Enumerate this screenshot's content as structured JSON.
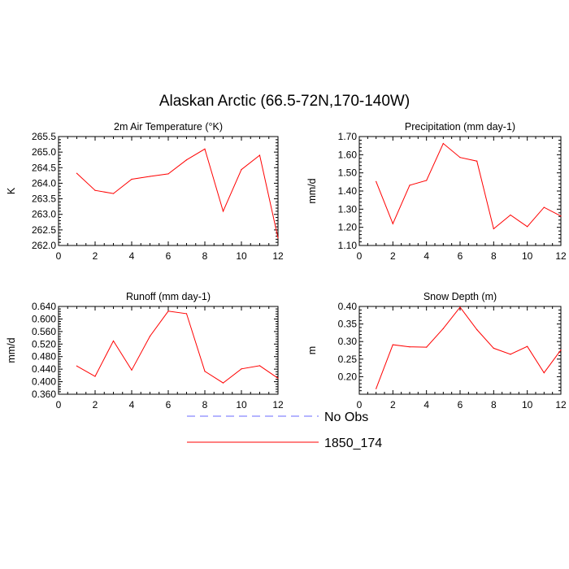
{
  "figure": {
    "title": "Alaskan Arctic (66.5-72N,170-140W)"
  },
  "chart_data": [
    {
      "type": "line",
      "title": "2m Air Temperature (°K)",
      "xlabel": "",
      "ylabel": "K",
      "xlim": [
        0,
        12
      ],
      "ylim": [
        262.0,
        265.5
      ],
      "xticks": [
        "0",
        "2",
        "4",
        "6",
        "8",
        "10",
        "12"
      ],
      "yticks": [
        "262.0",
        "262.5",
        "263.0",
        "263.5",
        "264.0",
        "264.5",
        "265.0",
        "265.5"
      ],
      "x": [
        1,
        2,
        3,
        4,
        5,
        6,
        7,
        8,
        9,
        10,
        11,
        12
      ],
      "series": [
        {
          "name": "1850_174",
          "color": "#ff0000",
          "values": [
            264.32,
            263.77,
            263.67,
            264.13,
            264.22,
            264.3,
            264.75,
            265.1,
            263.1,
            264.44,
            264.9,
            262.24
          ]
        }
      ]
    },
    {
      "type": "line",
      "title": "Precipitation (mm day-1)",
      "xlabel": "",
      "ylabel": "mm/d",
      "xlim": [
        0,
        12
      ],
      "ylim": [
        1.1,
        1.7
      ],
      "xticks": [
        "0",
        "2",
        "4",
        "6",
        "8",
        "10",
        "12"
      ],
      "yticks": [
        "1.10",
        "1.20",
        "1.30",
        "1.40",
        "1.50",
        "1.60",
        "1.70"
      ],
      "x": [
        1,
        2,
        3,
        4,
        5,
        6,
        7,
        8,
        9,
        10,
        11,
        12
      ],
      "series": [
        {
          "name": "1850_174",
          "color": "#ff0000",
          "values": [
            1.452,
            1.22,
            1.432,
            1.458,
            1.662,
            1.585,
            1.565,
            1.192,
            1.268,
            1.204,
            1.31,
            1.262
          ]
        }
      ]
    },
    {
      "type": "line",
      "title": "Runoff (mm day-1)",
      "xlabel": "",
      "ylabel": "mm/d",
      "xlim": [
        0,
        12
      ],
      "ylim": [
        0.36,
        0.64
      ],
      "xticks": [
        "0",
        "2",
        "4",
        "6",
        "8",
        "10",
        "12"
      ],
      "yticks": [
        "0.360",
        "0.400",
        "0.440",
        "0.480",
        "0.520",
        "0.560",
        "0.600",
        "0.640"
      ],
      "x": [
        1,
        2,
        3,
        4,
        5,
        6,
        7,
        8,
        9,
        10,
        11,
        12
      ],
      "series": [
        {
          "name": "1850_174",
          "color": "#ff0000",
          "values": [
            0.45,
            0.417,
            0.53,
            0.437,
            0.545,
            0.625,
            0.617,
            0.433,
            0.396,
            0.441,
            0.451,
            0.411
          ]
        }
      ]
    },
    {
      "type": "line",
      "title": "Snow Depth (m)",
      "xlabel": "",
      "ylabel": "m",
      "xlim": [
        0,
        12
      ],
      "ylim": [
        0.15,
        0.4
      ],
      "xticks": [
        "0",
        "2",
        "4",
        "6",
        "8",
        "10",
        "12"
      ],
      "yticks": [
        "0.20",
        "0.25",
        "0.30",
        "0.35",
        "0.40"
      ],
      "x": [
        1,
        2,
        3,
        4,
        5,
        6,
        7,
        8,
        9,
        10,
        11,
        12
      ],
      "series": [
        {
          "name": "1850_174",
          "color": "#ff0000",
          "values": [
            0.166,
            0.291,
            0.285,
            0.284,
            0.337,
            0.398,
            0.334,
            0.281,
            0.264,
            0.286,
            0.211,
            0.276
          ]
        }
      ]
    }
  ],
  "legend": {
    "items": [
      {
        "label": "No Obs",
        "color": "#6a6aff",
        "style": "dashed"
      },
      {
        "label": "1850_174",
        "color": "#ff0000",
        "style": "solid"
      }
    ]
  }
}
